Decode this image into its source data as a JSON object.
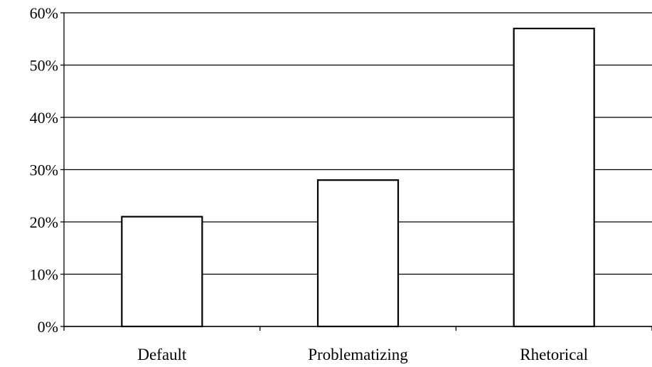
{
  "chart_data": {
    "type": "bar",
    "categories": [
      "Default",
      "Problematizing",
      "Rhetorical"
    ],
    "values": [
      21,
      28,
      57
    ],
    "title": "",
    "xlabel": "",
    "ylabel": "",
    "ylim": [
      0,
      60
    ],
    "yticks": [
      0,
      10,
      20,
      30,
      40,
      50,
      60
    ],
    "ytick_labels": [
      "0%",
      "10%",
      "20%",
      "30%",
      "40%",
      "50%",
      "60%"
    ],
    "grid": true,
    "legend": "none",
    "bar_fill": "#ffffff",
    "bar_stroke": "#000000",
    "grid_color": "#000000"
  }
}
